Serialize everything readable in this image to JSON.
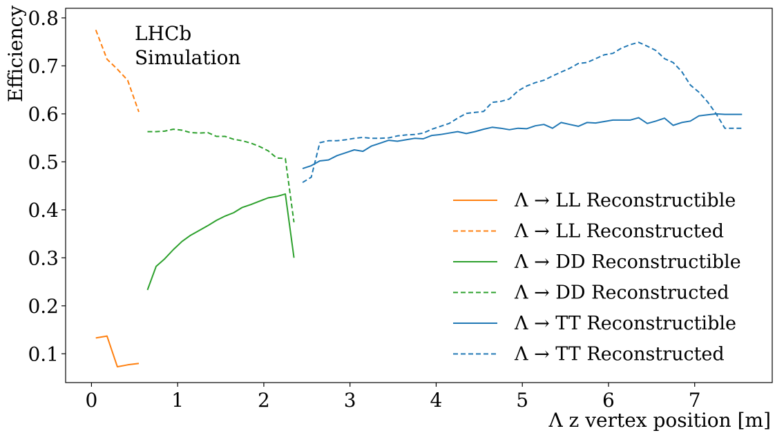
{
  "chart_data": {
    "type": "line",
    "xlabel": "Λ z vertex position [m]",
    "ylabel": "Efficiency",
    "xlim": [
      -0.3,
      7.9
    ],
    "ylim": [
      0.04,
      0.82
    ],
    "xticks": [
      0,
      1,
      2,
      3,
      4,
      5,
      6,
      7
    ],
    "yticks": [
      0.1,
      0.2,
      0.3,
      0.4,
      0.5,
      0.6,
      0.7,
      0.8
    ],
    "xtick_labels": [
      "0",
      "1",
      "2",
      "3",
      "4",
      "5",
      "6",
      "7"
    ],
    "ytick_labels": [
      "0.1",
      "0.2",
      "0.3",
      "0.4",
      "0.5",
      "0.6",
      "0.7",
      "0.8"
    ],
    "grid": false,
    "legend_position": "lower-right",
    "annotation": [
      "LHCb",
      "Simulation"
    ],
    "series": [
      {
        "name": "Λ → LL Reconstructible",
        "color": "#ff7f0e",
        "dash": "solid",
        "x": [
          0.05,
          0.18,
          0.3,
          0.42,
          0.55
        ],
        "y": [
          0.133,
          0.137,
          0.073,
          0.077,
          0.08
        ]
      },
      {
        "name": "Λ → LL Reconstructed",
        "color": "#ff7f0e",
        "dash": "dashed",
        "x": [
          0.05,
          0.18,
          0.3,
          0.42,
          0.55
        ],
        "y": [
          0.775,
          0.714,
          0.693,
          0.67,
          0.604
        ]
      },
      {
        "name": "Λ → DD Reconstructible",
        "color": "#2ca02c",
        "dash": "solid",
        "x": [
          0.65,
          0.75,
          0.85,
          0.95,
          1.05,
          1.15,
          1.25,
          1.35,
          1.45,
          1.55,
          1.65,
          1.75,
          1.85,
          1.95,
          2.05,
          2.15,
          2.25,
          2.35
        ],
        "y": [
          0.233,
          0.282,
          0.298,
          0.317,
          0.334,
          0.347,
          0.357,
          0.367,
          0.378,
          0.387,
          0.394,
          0.405,
          0.411,
          0.418,
          0.425,
          0.428,
          0.433,
          0.3
        ]
      },
      {
        "name": "Λ → DD Reconstructed",
        "color": "#2ca02c",
        "dash": "dashed",
        "x": [
          0.65,
          0.75,
          0.85,
          0.95,
          1.05,
          1.15,
          1.25,
          1.35,
          1.45,
          1.55,
          1.65,
          1.75,
          1.85,
          1.95,
          2.05,
          2.15,
          2.25,
          2.35
        ],
        "y": [
          0.563,
          0.563,
          0.564,
          0.568,
          0.566,
          0.561,
          0.56,
          0.561,
          0.553,
          0.553,
          0.547,
          0.544,
          0.539,
          0.532,
          0.523,
          0.508,
          0.507,
          0.374
        ]
      },
      {
        "name": "Λ → TT Reconstructible",
        "color": "#1f77b4",
        "dash": "solid",
        "x": [
          2.45,
          2.55,
          2.65,
          2.75,
          2.85,
          2.95,
          3.05,
          3.15,
          3.25,
          3.35,
          3.45,
          3.55,
          3.65,
          3.75,
          3.85,
          3.95,
          4.05,
          4.15,
          4.25,
          4.35,
          4.45,
          4.55,
          4.65,
          4.75,
          4.85,
          4.95,
          5.05,
          5.15,
          5.25,
          5.35,
          5.45,
          5.55,
          5.65,
          5.75,
          5.85,
          5.95,
          6.05,
          6.15,
          6.25,
          6.35,
          6.45,
          6.55,
          6.65,
          6.75,
          6.85,
          6.95,
          7.05,
          7.15,
          7.25,
          7.35,
          7.45,
          7.55
        ],
        "y": [
          0.486,
          0.492,
          0.502,
          0.504,
          0.513,
          0.519,
          0.525,
          0.522,
          0.533,
          0.539,
          0.545,
          0.543,
          0.546,
          0.549,
          0.548,
          0.555,
          0.557,
          0.56,
          0.563,
          0.559,
          0.563,
          0.568,
          0.572,
          0.57,
          0.567,
          0.57,
          0.569,
          0.575,
          0.578,
          0.57,
          0.582,
          0.578,
          0.574,
          0.582,
          0.581,
          0.584,
          0.587,
          0.587,
          0.587,
          0.592,
          0.58,
          0.585,
          0.591,
          0.576,
          0.582,
          0.585,
          0.596,
          0.598,
          0.6,
          0.599,
          0.599,
          0.599
        ]
      },
      {
        "name": "Λ → TT Reconstructed",
        "color": "#1f77b4",
        "dash": "dashed",
        "x": [
          2.45,
          2.55,
          2.65,
          2.75,
          2.85,
          2.95,
          3.05,
          3.15,
          3.25,
          3.35,
          3.45,
          3.55,
          3.65,
          3.75,
          3.85,
          3.95,
          4.05,
          4.15,
          4.25,
          4.35,
          4.45,
          4.55,
          4.65,
          4.75,
          4.85,
          4.95,
          5.05,
          5.15,
          5.25,
          5.35,
          5.45,
          5.55,
          5.65,
          5.75,
          5.85,
          5.95,
          6.05,
          6.15,
          6.25,
          6.35,
          6.45,
          6.55,
          6.65,
          6.75,
          6.85,
          6.95,
          7.05,
          7.15,
          7.25,
          7.35,
          7.45,
          7.55
        ],
        "y": [
          0.457,
          0.468,
          0.54,
          0.544,
          0.544,
          0.546,
          0.549,
          0.551,
          0.549,
          0.549,
          0.55,
          0.554,
          0.556,
          0.557,
          0.56,
          0.568,
          0.574,
          0.58,
          0.591,
          0.601,
          0.603,
          0.605,
          0.624,
          0.626,
          0.631,
          0.648,
          0.658,
          0.665,
          0.67,
          0.679,
          0.687,
          0.695,
          0.705,
          0.707,
          0.715,
          0.723,
          0.726,
          0.737,
          0.744,
          0.749,
          0.741,
          0.732,
          0.715,
          0.707,
          0.688,
          0.66,
          0.645,
          0.625,
          0.6,
          0.57,
          0.57,
          0.57
        ]
      }
    ]
  }
}
